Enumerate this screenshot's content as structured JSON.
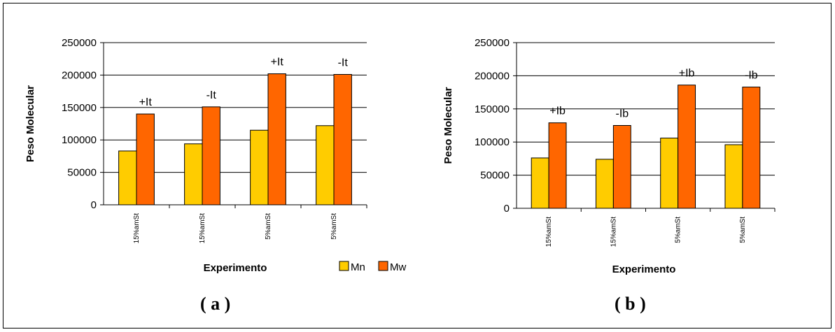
{
  "colors": {
    "mn": "#ffcc00",
    "mw": "#ff6600",
    "grid": "#000000",
    "background": "#ffffff"
  },
  "legend": {
    "placement": "bottom",
    "items": [
      "Mn",
      "Mw"
    ]
  },
  "captions": [
    "( a )",
    "( b )"
  ],
  "chart_data": [
    {
      "type": "bar",
      "title": "",
      "xlabel": "Experimento",
      "ylabel": "Peso Molecular",
      "ylim": [
        0,
        250000
      ],
      "yticks": [
        0,
        50000,
        100000,
        150000,
        200000,
        250000
      ],
      "grid": true,
      "categories": [
        "15%amSt",
        "15%amSt",
        "5%amSt",
        "5%amSt"
      ],
      "annotations": [
        "+It",
        "-It",
        "+It",
        "-It"
      ],
      "series": [
        {
          "name": "Mn",
          "values": [
            83000,
            94000,
            115000,
            122000
          ]
        },
        {
          "name": "Mw",
          "values": [
            140000,
            151000,
            202000,
            201000
          ]
        }
      ]
    },
    {
      "type": "bar",
      "title": "",
      "xlabel": "Experimento",
      "ylabel": "Peso Molecular",
      "ylim": [
        0,
        250000
      ],
      "yticks": [
        0,
        50000,
        100000,
        150000,
        200000,
        250000
      ],
      "grid": true,
      "categories": [
        "15%amSt",
        "15%amSt",
        "5%amSt",
        "5%amSt"
      ],
      "annotations": [
        "+Ib",
        "-Ib",
        "+Ib",
        "-Ib"
      ],
      "series": [
        {
          "name": "Mn",
          "values": [
            76000,
            74000,
            106000,
            96000
          ]
        },
        {
          "name": "Mw",
          "values": [
            129000,
            125000,
            186000,
            183000
          ]
        }
      ]
    }
  ]
}
